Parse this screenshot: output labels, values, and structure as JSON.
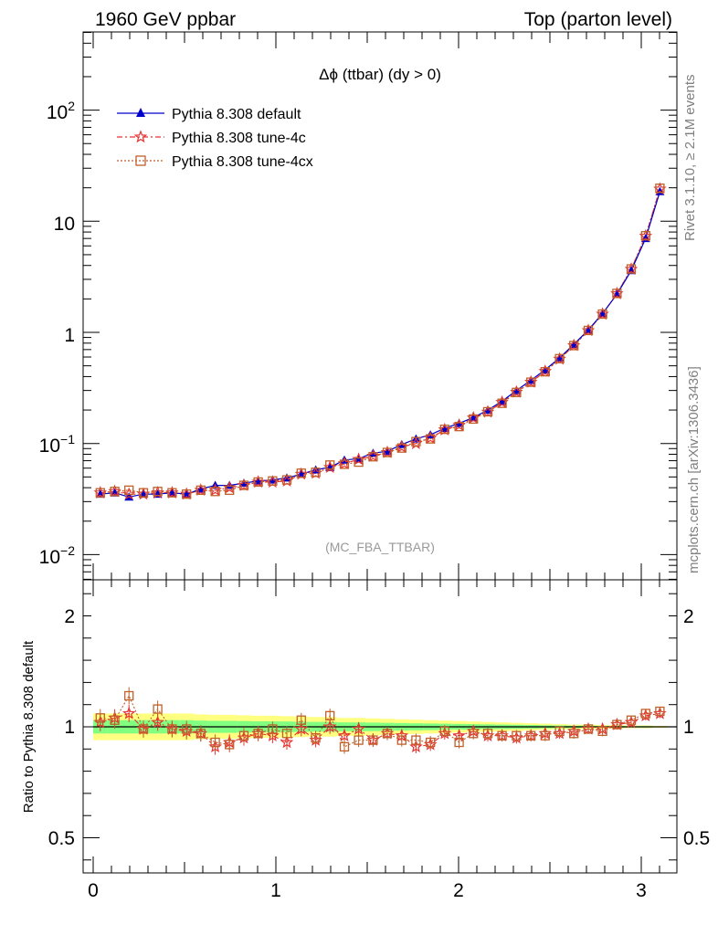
{
  "header": {
    "left": "1960 GeV ppbar",
    "right": "Top (parton level)"
  },
  "side_labels": {
    "rivet": "Rivet 3.1.10, ≥ 2.1M events",
    "mcplots": "mcplots.cern.ch [arXiv:1306.3436]"
  },
  "analysis_tag": "(MC_FBA_TTBAR)",
  "chart_data": [
    {
      "type": "line",
      "title": "Δϕ (ttbar) (dy > 0)",
      "xlabel": "",
      "ylabel": "",
      "yscale": "log",
      "xlim": [
        -0.06,
        3.2
      ],
      "ylim": [
        0.006,
        550
      ],
      "grid": false,
      "legend_position": "top-left",
      "y_tick_labels": [
        "10^-2",
        "10^-1",
        "1",
        "10",
        "10^2"
      ],
      "x": [
        0.039,
        0.118,
        0.196,
        0.275,
        0.353,
        0.432,
        0.511,
        0.589,
        0.668,
        0.746,
        0.825,
        0.903,
        0.982,
        1.06,
        1.139,
        1.218,
        1.296,
        1.375,
        1.453,
        1.532,
        1.61,
        1.689,
        1.767,
        1.846,
        1.924,
        2.003,
        2.081,
        2.16,
        2.238,
        2.317,
        2.396,
        2.474,
        2.553,
        2.631,
        2.71,
        2.788,
        2.867,
        2.945,
        3.024,
        3.102
      ],
      "series": [
        {
          "name": "Pythia 8.308 default",
          "color": "#0000cc",
          "marker": "triangle",
          "values": [
            0.035,
            0.036,
            0.033,
            0.035,
            0.035,
            0.036,
            0.035,
            0.039,
            0.042,
            0.042,
            0.044,
            0.046,
            0.047,
            0.049,
            0.053,
            0.058,
            0.061,
            0.071,
            0.073,
            0.082,
            0.085,
            0.098,
            0.11,
            0.12,
            0.137,
            0.152,
            0.171,
            0.2,
            0.24,
            0.3,
            0.37,
            0.46,
            0.59,
            0.78,
            1.05,
            1.48,
            2.2,
            3.6,
            7.0,
            18.5
          ]
        },
        {
          "name": "Pythia 8.308 tune-4c",
          "color": "#e63333",
          "marker": "star",
          "values": [
            0.036,
            0.037,
            0.035,
            0.035,
            0.036,
            0.036,
            0.035,
            0.038,
            0.038,
            0.04,
            0.042,
            0.045,
            0.045,
            0.046,
            0.053,
            0.054,
            0.061,
            0.066,
            0.072,
            0.077,
            0.083,
            0.093,
            0.1,
            0.112,
            0.133,
            0.146,
            0.17,
            0.192,
            0.235,
            0.29,
            0.356,
            0.446,
            0.575,
            0.762,
            1.04,
            1.46,
            2.23,
            3.7,
            7.35,
            19.5
          ]
        },
        {
          "name": "Pythia 8.308 tune-4cx",
          "color": "#c0602a",
          "marker": "open-square",
          "values": [
            0.036,
            0.037,
            0.038,
            0.036,
            0.037,
            0.036,
            0.035,
            0.038,
            0.037,
            0.038,
            0.042,
            0.045,
            0.046,
            0.047,
            0.054,
            0.055,
            0.064,
            0.065,
            0.068,
            0.076,
            0.083,
            0.091,
            0.104,
            0.11,
            0.134,
            0.142,
            0.166,
            0.193,
            0.23,
            0.288,
            0.356,
            0.442,
            0.58,
            0.76,
            1.04,
            1.46,
            2.24,
            3.72,
            7.4,
            19.8
          ]
        }
      ]
    },
    {
      "type": "line",
      "title": "",
      "xlabel": "",
      "ylabel": "Ratio to Pythia 8.308 default",
      "xlim": [
        -0.06,
        3.2
      ],
      "ylim": [
        0.35,
        2.25
      ],
      "grid": false,
      "x_tick_labels": [
        "0",
        "1",
        "2",
        "3"
      ],
      "y_tick_labels": [
        "0.5",
        "1",
        "2"
      ],
      "band_inner_halfwidth": [
        0.03,
        0.03,
        0.03,
        0.03,
        0.03,
        0.03,
        0.03,
        0.028,
        0.027,
        0.027,
        0.026,
        0.025,
        0.025,
        0.024,
        0.023,
        0.022,
        0.022,
        0.02,
        0.02,
        0.019,
        0.018,
        0.017,
        0.016,
        0.015,
        0.014,
        0.013,
        0.012,
        0.011,
        0.01,
        0.009,
        0.008,
        0.007,
        0.006,
        0.005,
        0.005,
        0.004,
        0.004,
        0.003,
        0.003,
        0.002
      ],
      "band_outer_halfwidth": [
        0.06,
        0.06,
        0.06,
        0.06,
        0.06,
        0.06,
        0.06,
        0.056,
        0.054,
        0.054,
        0.052,
        0.05,
        0.05,
        0.048,
        0.046,
        0.044,
        0.044,
        0.04,
        0.04,
        0.038,
        0.036,
        0.034,
        0.032,
        0.03,
        0.028,
        0.026,
        0.024,
        0.022,
        0.02,
        0.018,
        0.016,
        0.014,
        0.012,
        0.01,
        0.01,
        0.008,
        0.008,
        0.006,
        0.006,
        0.004
      ],
      "series": [
        {
          "name": "Pythia 8.308 default",
          "color": "#000000",
          "values": [
            1,
            1,
            1,
            1,
            1,
            1,
            1,
            1,
            1,
            1,
            1,
            1,
            1,
            1,
            1,
            1,
            1,
            1,
            1,
            1,
            1,
            1,
            1,
            1,
            1,
            1,
            1,
            1,
            1,
            1,
            1,
            1,
            1,
            1,
            1,
            1,
            1,
            1,
            1,
            1
          ]
        },
        {
          "name": "Pythia 8.308 tune-4c",
          "color": "#e63333",
          "values": [
            1.02,
            1.04,
            1.06,
            0.99,
            1.02,
            0.99,
            0.98,
            0.97,
            0.91,
            0.93,
            0.95,
            0.97,
            0.96,
            0.93,
            0.99,
            0.94,
            1.0,
            0.96,
            0.99,
            0.94,
            0.97,
            0.96,
            0.91,
            0.92,
            0.97,
            0.96,
            0.98,
            0.96,
            0.96,
            0.95,
            0.96,
            0.97,
            0.97,
            0.98,
            0.99,
            0.99,
            1.01,
            1.02,
            1.05,
            1.06
          ]
        },
        {
          "name": "Pythia 8.308 tune-4cx",
          "color": "#c0602a",
          "values": [
            1.04,
            1.03,
            1.14,
            0.99,
            1.08,
            0.99,
            0.99,
            0.97,
            0.93,
            0.92,
            0.96,
            0.97,
            0.99,
            0.97,
            1.03,
            0.95,
            1.05,
            0.91,
            0.94,
            0.94,
            0.97,
            0.94,
            0.94,
            0.93,
            0.98,
            0.93,
            0.97,
            0.97,
            0.96,
            0.96,
            0.96,
            0.96,
            0.98,
            0.97,
            0.99,
            0.98,
            1.01,
            1.03,
            1.06,
            1.07
          ]
        }
      ]
    }
  ]
}
